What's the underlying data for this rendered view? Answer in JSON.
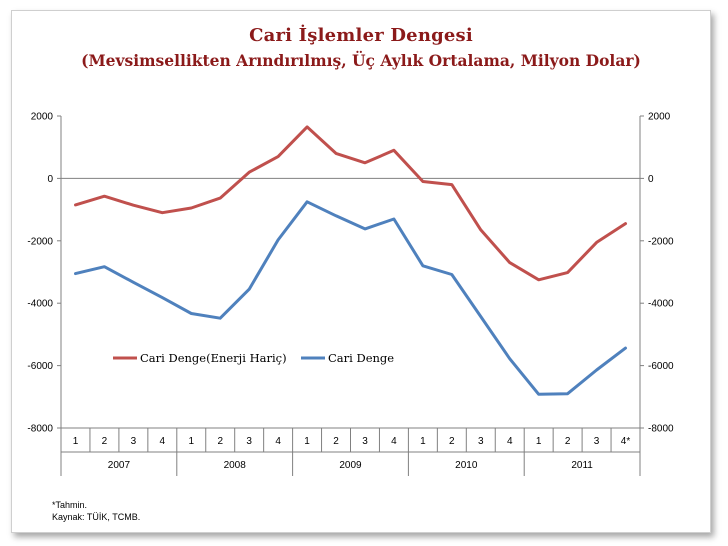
{
  "title": "Cari İşlemler Dengesi",
  "subtitle": "(Mevsimsellikten Arındırılmış, Üç Aylık Ortalama, Milyon  Dolar)",
  "footnote": "*Tahmin.",
  "source": "Kaynak: TÜİK, TCMB.",
  "colors": {
    "title": "#8b1a1a",
    "series_red": "#c0504d",
    "series_blue": "#4f81bd"
  },
  "chart_data": {
    "type": "line",
    "ylim": [
      -8000,
      2000
    ],
    "yticks": [
      "2000",
      "0",
      "-2000",
      "-4000",
      "-6000",
      "-8000"
    ],
    "yticks_right": [
      "2000",
      "0",
      "-2000",
      "-4000",
      "-6000",
      "-8000"
    ],
    "quarters": [
      "1",
      "2",
      "3",
      "4",
      "1",
      "2",
      "3",
      "4",
      "1",
      "2",
      "3",
      "4",
      "1",
      "2",
      "3",
      "4",
      "1",
      "2",
      "3",
      "4*"
    ],
    "years": [
      "2007",
      "2008",
      "2009",
      "2010",
      "2011"
    ],
    "legend_position": "middle-left",
    "grid": false,
    "series": [
      {
        "name": "Cari Denge(Enerji Hariç)",
        "color": "#c0504d",
        "values": [
          -850,
          -570,
          -860,
          -1100,
          -950,
          -630,
          200,
          700,
          1650,
          800,
          500,
          900,
          -100,
          -200,
          -1650,
          -2700,
          -3250,
          -3020,
          -2050,
          -1450
        ]
      },
      {
        "name": "Cari Denge",
        "color": "#4f81bd",
        "values": [
          -3050,
          -2830,
          -3330,
          -3820,
          -4330,
          -4480,
          -3550,
          -1970,
          -750,
          -1200,
          -1620,
          -1300,
          -2800,
          -3080,
          -4430,
          -5780,
          -6920,
          -6900,
          -6140,
          -5440
        ]
      }
    ]
  }
}
